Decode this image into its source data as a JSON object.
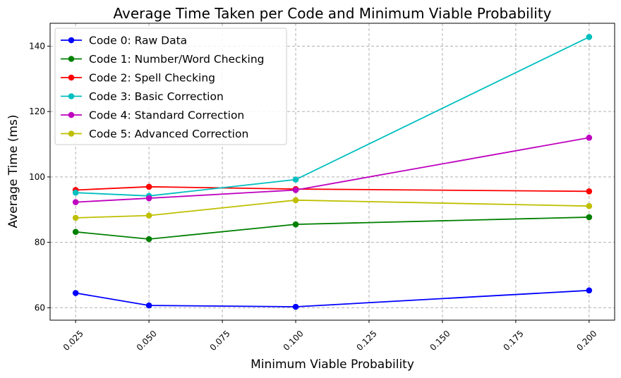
{
  "chart_data": {
    "type": "line",
    "title": "Average Time Taken per Code and Minimum Viable Probability",
    "xlabel": "Minimum Viable Probability",
    "ylabel": "Average Time (ms)",
    "x": [
      0.025,
      0.05,
      0.1,
      0.2
    ],
    "xlim": [
      0.0163,
      0.2087
    ],
    "ylim": [
      56.2,
      147.0
    ],
    "xticks": [
      0.025,
      0.05,
      0.075,
      0.1,
      0.125,
      0.15,
      0.175,
      0.2
    ],
    "xtick_labels": [
      "0.025",
      "0.050",
      "0.075",
      "0.100",
      "0.125",
      "0.150",
      "0.175",
      "0.200"
    ],
    "yticks": [
      60,
      80,
      100,
      120,
      140
    ],
    "ytick_labels": [
      "60",
      "80",
      "100",
      "120",
      "140"
    ],
    "grid": true,
    "legend_position": "upper-left",
    "series": [
      {
        "name": "Code 0: Raw Data",
        "color": "#0000ff",
        "values": [
          64.5,
          60.7,
          60.3,
          65.3
        ]
      },
      {
        "name": "Code 1: Number/Word Checking",
        "color": "#008000",
        "values": [
          83.2,
          81.0,
          85.5,
          87.7
        ]
      },
      {
        "name": "Code 2: Spell Checking",
        "color": "#ff0000",
        "values": [
          96.0,
          97.0,
          96.3,
          95.6
        ]
      },
      {
        "name": "Code 3: Basic Correction",
        "color": "#00bfbf",
        "values": [
          95.2,
          94.2,
          99.2,
          142.8
        ]
      },
      {
        "name": "Code 4: Standard Correction",
        "color": "#bf00bf",
        "values": [
          92.3,
          93.5,
          96.0,
          112.0
        ]
      },
      {
        "name": "Code 5: Advanced Correction",
        "color": "#bfbf00",
        "values": [
          87.5,
          88.2,
          92.9,
          91.1
        ]
      }
    ]
  }
}
